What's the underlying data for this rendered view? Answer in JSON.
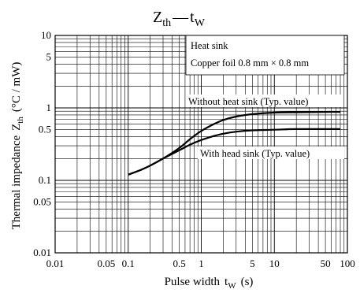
{
  "chart_data": {
    "type": "line",
    "title": {
      "main": "Z",
      "main_sub": "th",
      "dash": "—",
      "var": "t",
      "var_sub": "W"
    },
    "xlabel": {
      "text": "Pulse width",
      "var": "t",
      "var_sub": "W",
      "unit": "(s)"
    },
    "ylabel": {
      "text": "Thermal impedance",
      "var": "Z",
      "var_sub": "th",
      "unit": "(°C / mW)"
    },
    "x_scale": "log",
    "y_scale": "log",
    "xlim": [
      0.01,
      100
    ],
    "ylim": [
      0.01,
      10
    ],
    "x_ticks": [
      {
        "v": 0.01,
        "label": "0.01"
      },
      {
        "v": 0.05,
        "label": "0.05"
      },
      {
        "v": 0.1,
        "label": "0.1"
      },
      {
        "v": 0.5,
        "label": "0.5"
      },
      {
        "v": 1,
        "label": "1"
      },
      {
        "v": 5,
        "label": "5"
      },
      {
        "v": 10,
        "label": "10"
      },
      {
        "v": 50,
        "label": "50"
      },
      {
        "v": 100,
        "label": "100"
      }
    ],
    "y_ticks": [
      {
        "v": 0.01,
        "label": "0.01"
      },
      {
        "v": 0.05,
        "label": "0.05"
      },
      {
        "v": 0.1,
        "label": "0.1"
      },
      {
        "v": 0.5,
        "label": "0.5"
      },
      {
        "v": 1,
        "label": "1"
      },
      {
        "v": 5,
        "label": "5"
      },
      {
        "v": 10,
        "label": "10"
      }
    ],
    "grid": true,
    "annotations": {
      "heat_sink_line1": "Heat sink",
      "heat_sink_line2": "Copper foil 0.8 mm × 0.8 mm",
      "without": "Without heat sink (Typ. value)",
      "with": "With head sink (Typ. value)"
    },
    "series": [
      {
        "name": "Without heat sink (Typ. value)",
        "x": [
          0.1,
          0.15,
          0.2,
          0.3,
          0.5,
          0.7,
          1,
          1.5,
          2,
          3,
          5,
          10,
          20,
          50,
          80
        ],
        "y": [
          0.12,
          0.14,
          0.16,
          0.2,
          0.28,
          0.37,
          0.48,
          0.6,
          0.68,
          0.76,
          0.82,
          0.86,
          0.87,
          0.88,
          0.88
        ]
      },
      {
        "name": "With head sink (Typ. value)",
        "x": [
          0.1,
          0.15,
          0.2,
          0.3,
          0.5,
          0.7,
          1,
          1.5,
          2,
          3,
          5,
          10,
          20,
          50,
          80
        ],
        "y": [
          0.12,
          0.14,
          0.16,
          0.2,
          0.26,
          0.31,
          0.36,
          0.41,
          0.44,
          0.47,
          0.49,
          0.5,
          0.51,
          0.51,
          0.51
        ]
      }
    ]
  }
}
